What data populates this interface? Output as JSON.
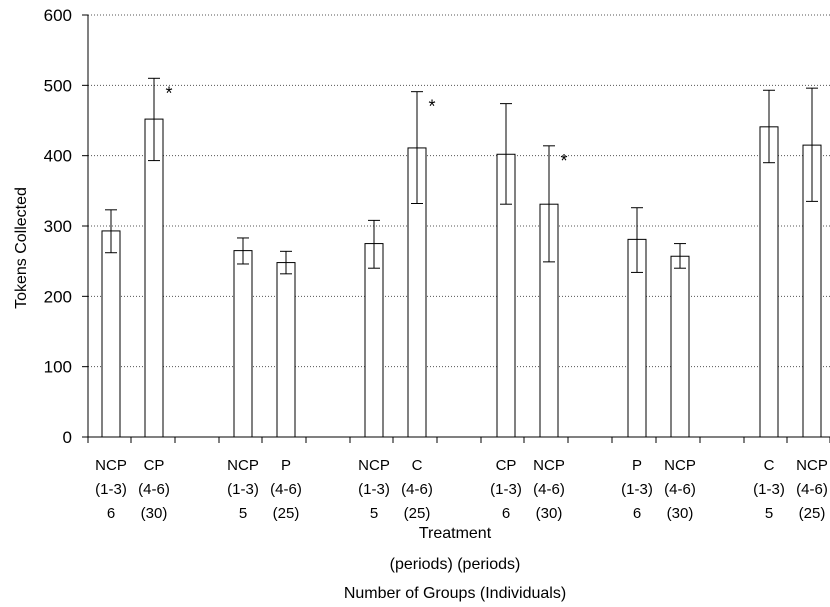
{
  "chart_data": {
    "type": "bar",
    "ylabel": "Tokens Collected",
    "xlabel_lines": [
      "Treatment",
      "(periods) (periods)",
      "Number of Groups (Individuals)"
    ],
    "ylim": [
      0,
      600
    ],
    "yticks": [
      0,
      100,
      200,
      300,
      400,
      500,
      600
    ],
    "grid": "horizontal dotted",
    "categories": [
      {
        "lines": [
          "NCP",
          "(1-3)",
          "6"
        ],
        "value": 293,
        "error": [
          262,
          323
        ],
        "significant": false
      },
      {
        "lines": [
          "CP",
          "(4-6)",
          "(30)"
        ],
        "value": 452,
        "error": [
          393,
          510
        ],
        "significant": true
      },
      {
        "lines": [
          "NCP",
          "(1-3)",
          "5"
        ],
        "value": 265,
        "error": [
          246,
          283
        ],
        "significant": false
      },
      {
        "lines": [
          "P",
          "(4-6)",
          "(25)"
        ],
        "value": 248,
        "error": [
          232,
          264
        ],
        "significant": false
      },
      {
        "lines": [
          "NCP",
          "(1-3)",
          "5"
        ],
        "value": 275,
        "error": [
          240,
          308
        ],
        "significant": false
      },
      {
        "lines": [
          "C",
          "(4-6)",
          "(25)"
        ],
        "value": 411,
        "error": [
          332,
          491
        ],
        "significant": true
      },
      {
        "lines": [
          "CP",
          "(1-3)",
          "6"
        ],
        "value": 402,
        "error": [
          331,
          474
        ],
        "significant": false
      },
      {
        "lines": [
          "NCP",
          "(4-6)",
          "(30)"
        ],
        "value": 331,
        "error": [
          249,
          414
        ],
        "significant": true
      },
      {
        "lines": [
          "P",
          "(1-3)",
          "6"
        ],
        "value": 281,
        "error": [
          234,
          326
        ],
        "significant": false
      },
      {
        "lines": [
          "NCP",
          "(4-6)",
          "(30)"
        ],
        "value": 257,
        "error": [
          240,
          275
        ],
        "significant": false
      },
      {
        "lines": [
          "C",
          "(1-3)",
          "5"
        ],
        "value": 441,
        "error": [
          390,
          493
        ],
        "significant": false
      },
      {
        "lines": [
          "NCP",
          "(4-6)",
          "(25)"
        ],
        "value": 415,
        "error": [
          335,
          496
        ],
        "significant": false
      }
    ],
    "significance_marker": "*"
  }
}
